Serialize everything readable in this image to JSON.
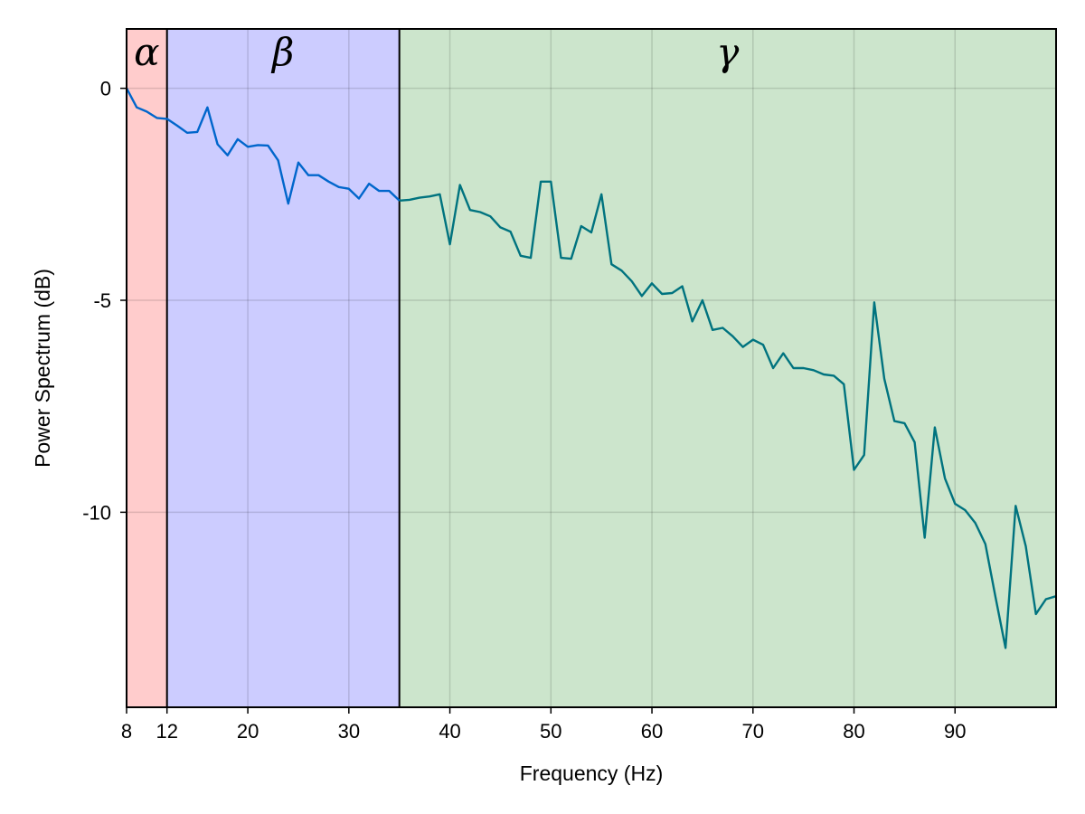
{
  "chart_data": {
    "type": "line",
    "title": "",
    "xlabel": "Frequency (Hz)",
    "ylabel": "Power Spectrum (dB)",
    "xlim": [
      8,
      100
    ],
    "ylim": [
      -14.6,
      1.4
    ],
    "x_ticks": [
      8,
      12,
      20,
      30,
      40,
      50,
      60,
      70,
      80,
      90
    ],
    "y_ticks": [
      0,
      -5,
      -10
    ],
    "y_tick_labels": [
      "0",
      "-5",
      "-10"
    ],
    "grid": true,
    "bands": [
      {
        "label": "α",
        "from": 8,
        "to": 12,
        "color": "#ffcccc"
      },
      {
        "label": "β",
        "from": 12,
        "to": 35,
        "color": "#ccccff"
      },
      {
        "label": "γ",
        "from": 35,
        "to": 100,
        "color": "#cce5cc"
      }
    ],
    "series": [
      {
        "color": "#0066cc",
        "x": [
          8,
          9,
          10,
          11,
          12,
          13,
          14,
          15,
          16,
          17,
          18,
          19,
          20,
          21,
          22,
          23,
          24,
          25,
          26,
          27,
          28,
          29,
          30,
          31,
          32,
          33,
          34,
          35
        ],
        "y": [
          0.0,
          -0.45,
          -0.55,
          -0.7,
          -0.72,
          -0.88,
          -1.05,
          -1.03,
          -0.45,
          -1.32,
          -1.58,
          -1.2,
          -1.38,
          -1.34,
          -1.35,
          -1.7,
          -2.72,
          -1.75,
          -2.05,
          -2.05,
          -2.2,
          -2.33,
          -2.37,
          -2.6,
          -2.25,
          -2.42,
          -2.42,
          -2.65
        ]
      },
      {
        "color": "#00737f",
        "x": [
          35,
          36,
          37,
          38,
          39,
          40,
          41,
          42,
          43,
          44,
          45,
          46,
          47,
          48,
          49,
          50,
          51,
          52,
          53,
          54,
          55,
          56,
          57,
          58,
          59,
          60,
          61,
          62,
          63,
          64,
          65,
          66,
          67,
          68,
          69,
          70,
          71,
          72,
          73,
          74,
          75,
          76,
          77,
          78,
          79,
          80,
          81,
          82,
          83,
          84,
          85,
          86,
          87,
          88,
          89,
          90,
          91,
          92,
          93,
          94,
          95,
          96,
          97,
          98,
          99,
          100
        ],
        "y": [
          -2.65,
          -2.63,
          -2.58,
          -2.55,
          -2.5,
          -3.68,
          -2.28,
          -2.87,
          -2.92,
          -3.02,
          -3.28,
          -3.38,
          -3.95,
          -4.0,
          -2.2,
          -2.2,
          -4.0,
          -4.02,
          -3.25,
          -3.4,
          -2.5,
          -4.15,
          -4.3,
          -4.55,
          -4.9,
          -4.6,
          -4.85,
          -4.83,
          -4.67,
          -5.5,
          -5.0,
          -5.7,
          -5.65,
          -5.85,
          -6.1,
          -5.93,
          -6.05,
          -6.6,
          -6.25,
          -6.6,
          -6.6,
          -6.65,
          -6.75,
          -6.78,
          -6.98,
          -9.0,
          -8.65,
          -5.05,
          -6.85,
          -7.85,
          -7.9,
          -8.35,
          -10.6,
          -8.0,
          -9.2,
          -9.8,
          -9.95,
          -10.25,
          -10.75,
          -12.0,
          -13.2,
          -9.85,
          -10.8,
          -12.4,
          -12.05,
          -11.98
        ]
      }
    ]
  }
}
